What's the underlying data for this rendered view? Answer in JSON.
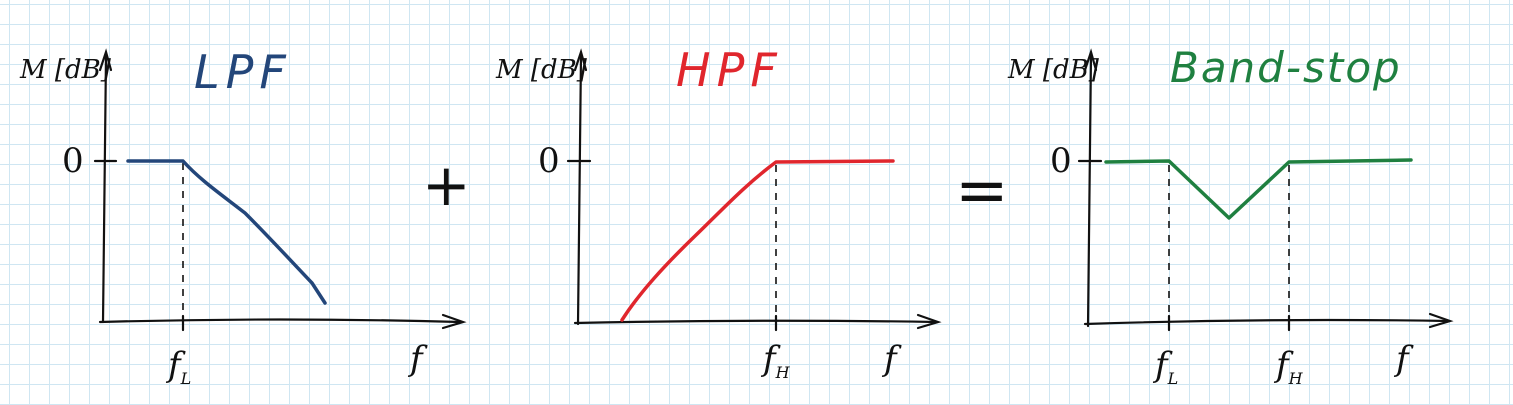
{
  "colors": {
    "lpf": "#23467a",
    "hpf": "#e0262d",
    "band_stop": "#1f8040",
    "ink": "#111111",
    "grid": "#cfe6f2"
  },
  "operators": {
    "plus": "+",
    "equals": "="
  },
  "panels": [
    {
      "id": "lpf",
      "title": "LPF",
      "ylabel": "M [dB]",
      "zero_label": "0",
      "xlabel": "f",
      "cutoffs": [
        {
          "label": "f",
          "sub": "L"
        }
      ],
      "response": [
        {
          "type": "flat",
          "level_db": 0
        },
        {
          "type": "rolloff_down",
          "after": "f_L"
        }
      ]
    },
    {
      "id": "hpf",
      "title": "HPF",
      "ylabel": "M [dB]",
      "zero_label": "0",
      "xlabel": "f",
      "cutoffs": [
        {
          "label": "f",
          "sub": "H"
        }
      ],
      "response": [
        {
          "type": "rolloff_up",
          "before": "f_H"
        },
        {
          "type": "flat",
          "level_db": 0
        }
      ]
    },
    {
      "id": "band_stop",
      "title": "Band-stop",
      "ylabel": "M [dB]",
      "zero_label": "0",
      "xlabel": "f",
      "cutoffs": [
        {
          "label": "f",
          "sub": "L"
        },
        {
          "label": "f",
          "sub": "H"
        }
      ],
      "response": [
        {
          "type": "flat",
          "level_db": 0
        },
        {
          "type": "notch",
          "between": [
            "f_L",
            "f_H"
          ]
        },
        {
          "type": "flat",
          "level_db": 0
        }
      ]
    }
  ]
}
